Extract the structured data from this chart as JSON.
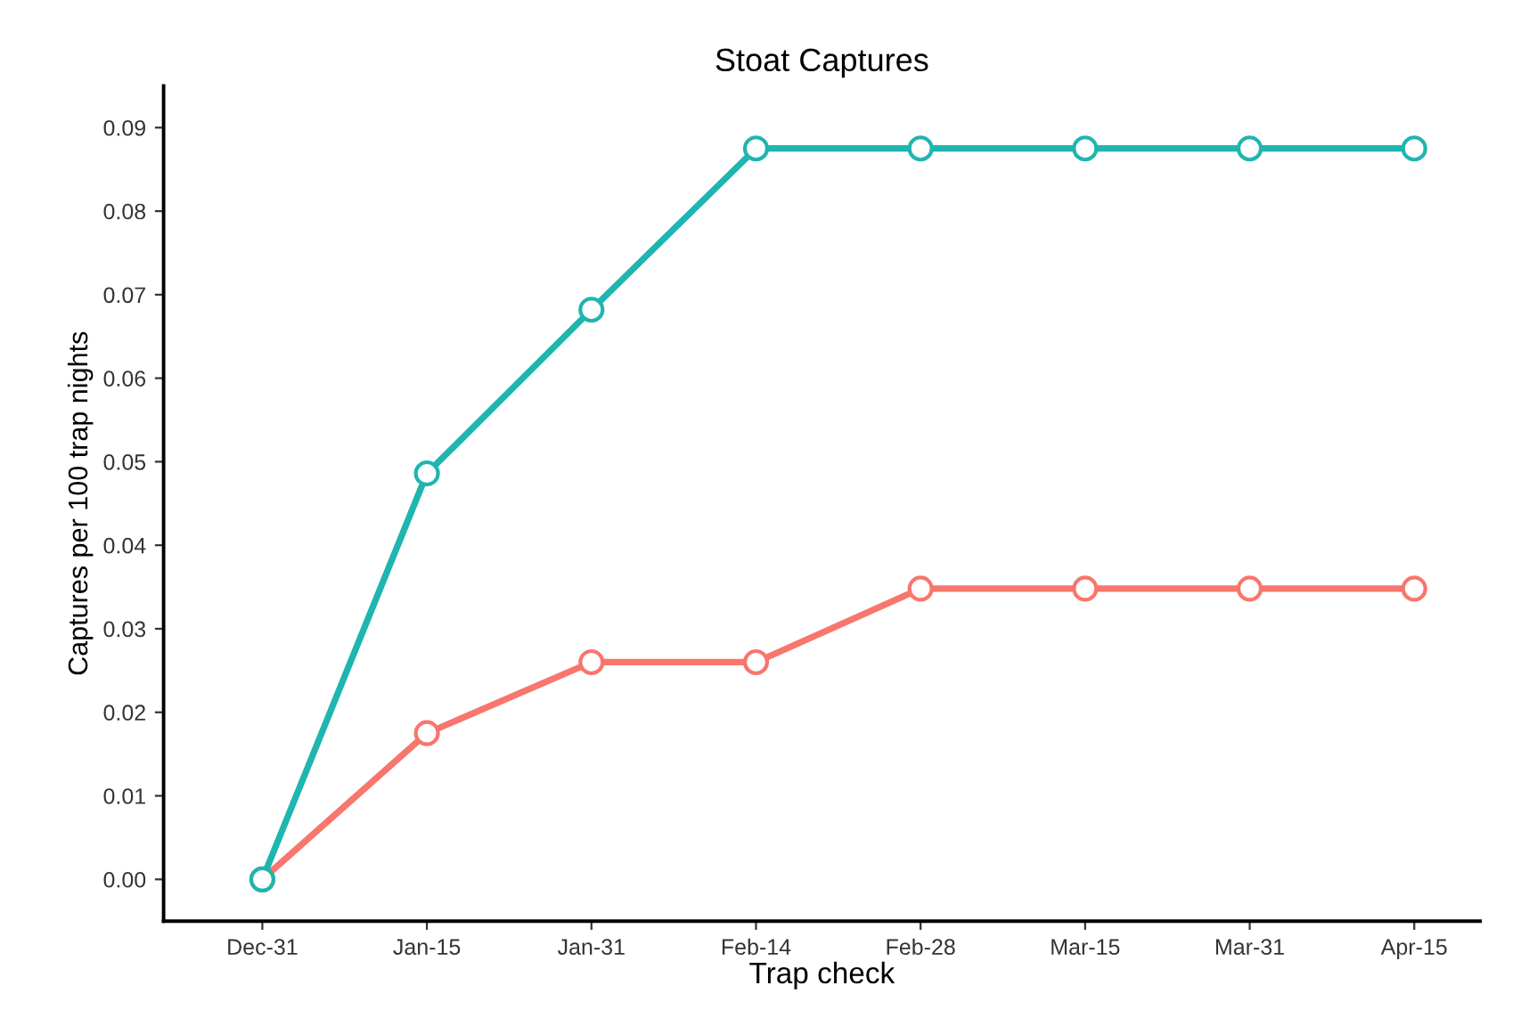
{
  "chart_data": {
    "type": "line",
    "title": "Stoat Captures",
    "xlabel": "Trap check",
    "ylabel": "Captures per 100 trap nights",
    "categories": [
      "Dec-31",
      "Jan-15",
      "Jan-31",
      "Feb-14",
      "Feb-28",
      "Mar-15",
      "Mar-31",
      "Apr-15"
    ],
    "series": [
      {
        "color": "#f8766d",
        "values": [
          0,
          0.0175,
          0.026,
          0.026,
          0.0348,
          0.0348,
          0.0348,
          0.0348
        ]
      },
      {
        "color": "#1fb5b0",
        "values": [
          0,
          0.0486,
          0.0682,
          0.0875,
          0.0875,
          0.0875,
          0.0875,
          0.0875
        ]
      }
    ],
    "ylim": [
      -0.005,
      0.095
    ],
    "yticks": [
      {
        "value": 0,
        "label": "0.00"
      },
      {
        "value": 0.01,
        "label": "0.01"
      },
      {
        "value": 0.02,
        "label": "0.02"
      },
      {
        "value": 0.03,
        "label": "0.03"
      },
      {
        "value": 0.04,
        "label": "0.04"
      },
      {
        "value": 0.05,
        "label": "0.05"
      },
      {
        "value": 0.06,
        "label": "0.06"
      },
      {
        "value": 0.07,
        "label": "0.07"
      },
      {
        "value": 0.08,
        "label": "0.08"
      },
      {
        "value": 0.09,
        "label": "0.09"
      }
    ],
    "grid": false,
    "legend": false,
    "marker": "circle",
    "line_style": "solid"
  }
}
